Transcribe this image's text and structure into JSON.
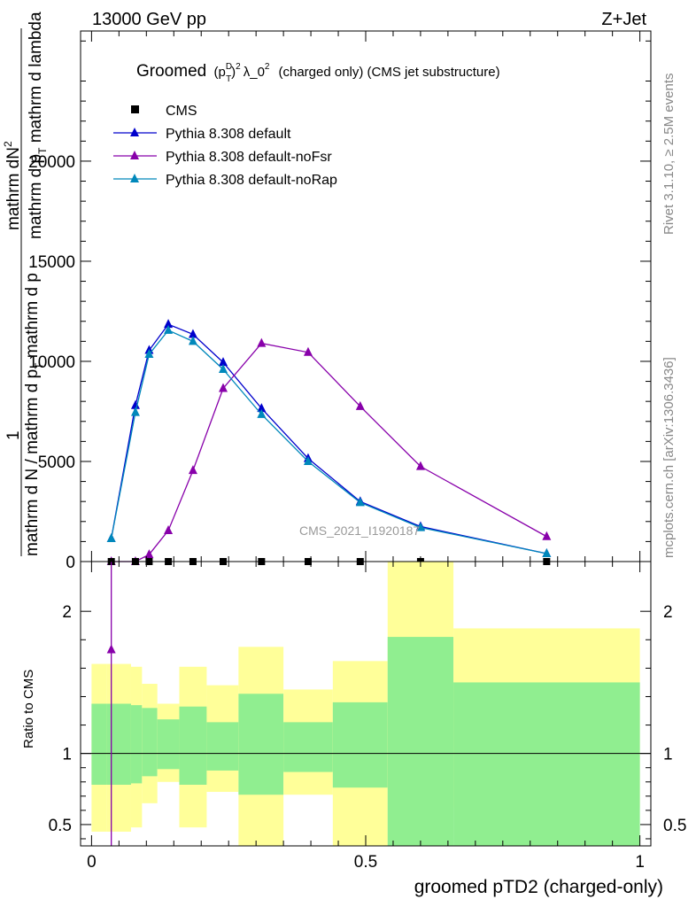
{
  "header": {
    "left": "13000 GeV pp",
    "right": "Z+Jet"
  },
  "side_labels": {
    "rivet": "Rivet 3.1.10, ≥ 2.5M events",
    "mcplots": "mcplots.cern.ch [arXiv:1306.3436]"
  },
  "title": {
    "prefix": "Groomed",
    "p": "p",
    "sup_d": "D",
    "sub_t": "T",
    "sup_2": "2",
    "lambda": "λ_0",
    "sup_2b": "2",
    "suffix": "(charged only) (CMS jet substructure)"
  },
  "watermark": "CMS_2021_I1920187",
  "y_axis_label": {
    "numerator_one": "1",
    "top_line1": "mathrm d",
    "top_n": "N",
    "top_sup": "2",
    "top_line2": "mathrm d p",
    "top_sub": "T",
    "top_line3": " mathrm d lambda",
    "bottom": "mathrm d N / mathrm d p",
    "bottom_sub": "T",
    "bottom2": " mathrm d p"
  },
  "ratio_label": "Ratio to CMS",
  "x_axis_label": "groomed pTD2 (charged-only)",
  "colors": {
    "default": "#0000cc",
    "noFsr": "#8800aa",
    "noRap": "#0088bb",
    "band_inner": "#90ee90",
    "band_outer": "#ffff99"
  },
  "legend": [
    {
      "label": "CMS",
      "key": "data"
    },
    {
      "label": "Pythia 8.308 default",
      "key": "default"
    },
    {
      "label": "Pythia 8.308 default-noFsr",
      "key": "noFsr"
    },
    {
      "label": "Pythia 8.308 default-noRap",
      "key": "noRap"
    }
  ],
  "chart_data": {
    "type": "line",
    "xlabel": "groomed pTD2 (charged-only)",
    "xlim": [
      0,
      1
    ],
    "x_ticks": [
      "0",
      "0.5",
      "1"
    ],
    "main": {
      "ylim": [
        0,
        26500
      ],
      "y_ticks": [
        "0",
        "5000",
        "10000",
        "15000",
        "20000"
      ],
      "cms": {
        "x": [
          0.036,
          0.08,
          0.105,
          0.14,
          0.185,
          0.24,
          0.31,
          0.395,
          0.49,
          0.6,
          0.83
        ],
        "y": [
          0,
          0,
          0,
          0,
          0,
          0,
          0,
          0,
          0,
          0,
          0
        ]
      },
      "series": [
        {
          "name": "Pythia 8.308 default",
          "key": "default",
          "x": [
            0.036,
            0.08,
            0.105,
            0.14,
            0.185,
            0.24,
            0.31,
            0.395,
            0.49,
            0.6,
            0.83
          ],
          "y": [
            1150,
            7800,
            10550,
            11850,
            11350,
            9950,
            7650,
            5150,
            3000,
            1750,
            400
          ]
        },
        {
          "name": "Pythia 8.308 default-noFsr",
          "key": "noFsr",
          "x": [
            0.036,
            0.08,
            0.105,
            0.14,
            0.185,
            0.24,
            0.31,
            0.395,
            0.49,
            0.6,
            0.83
          ],
          "y": [
            0,
            0,
            350,
            1550,
            4550,
            8650,
            10900,
            10450,
            7750,
            4750,
            1250
          ]
        },
        {
          "name": "Pythia 8.308 default-noRap",
          "key": "noRap",
          "x": [
            0.036,
            0.08,
            0.105,
            0.14,
            0.185,
            0.24,
            0.31,
            0.395,
            0.49,
            0.6,
            0.83
          ],
          "y": [
            1150,
            7450,
            10350,
            11550,
            11000,
            9600,
            7350,
            5000,
            2950,
            1700,
            400
          ]
        }
      ]
    },
    "ratio": {
      "ylim": [
        0.35,
        2.35
      ],
      "y_ticks": [
        "0.5",
        "1",
        "2"
      ],
      "bands": [
        {
          "x0": 0.0,
          "x1": 0.027,
          "in_lo": 0.78,
          "in_hi": 1.35,
          "out_lo": 0.45,
          "out_hi": 1.63
        },
        {
          "x0": 0.027,
          "x1": 0.072,
          "in_lo": 0.78,
          "in_hi": 1.35,
          "out_lo": 0.45,
          "out_hi": 1.63
        },
        {
          "x0": 0.072,
          "x1": 0.092,
          "in_lo": 0.79,
          "in_hi": 1.34,
          "out_lo": 0.48,
          "out_hi": 1.61
        },
        {
          "x0": 0.092,
          "x1": 0.12,
          "in_lo": 0.84,
          "in_hi": 1.32,
          "out_lo": 0.65,
          "out_hi": 1.49
        },
        {
          "x0": 0.12,
          "x1": 0.16,
          "in_lo": 0.89,
          "in_hi": 1.24,
          "out_lo": 0.8,
          "out_hi": 1.35
        },
        {
          "x0": 0.16,
          "x1": 0.21,
          "in_lo": 0.78,
          "in_hi": 1.33,
          "out_lo": 0.48,
          "out_hi": 1.61
        },
        {
          "x0": 0.21,
          "x1": 0.268,
          "in_lo": 0.88,
          "in_hi": 1.22,
          "out_lo": 0.73,
          "out_hi": 1.48
        },
        {
          "x0": 0.268,
          "x1": 0.35,
          "in_lo": 0.71,
          "in_hi": 1.42,
          "out_lo": 0.35,
          "out_hi": 1.75
        },
        {
          "x0": 0.35,
          "x1": 0.44,
          "in_lo": 0.87,
          "in_hi": 1.22,
          "out_lo": 0.71,
          "out_hi": 1.45
        },
        {
          "x0": 0.44,
          "x1": 0.54,
          "in_lo": 0.76,
          "in_hi": 1.36,
          "out_lo": 0.35,
          "out_hi": 1.65
        },
        {
          "x0": 0.54,
          "x1": 0.66,
          "in_lo": 0.35,
          "in_hi": 1.82,
          "out_lo": 0.35,
          "out_hi": 2.35
        },
        {
          "x0": 0.66,
          "x1": 1.0,
          "in_lo": 0.35,
          "in_hi": 1.5,
          "out_lo": 0.62,
          "out_hi": 1.88
        }
      ],
      "noFsr_line": {
        "x": [
          0.036,
          0.036,
          0.036
        ],
        "y": [
          0.35,
          1.73,
          2.35
        ]
      }
    }
  }
}
